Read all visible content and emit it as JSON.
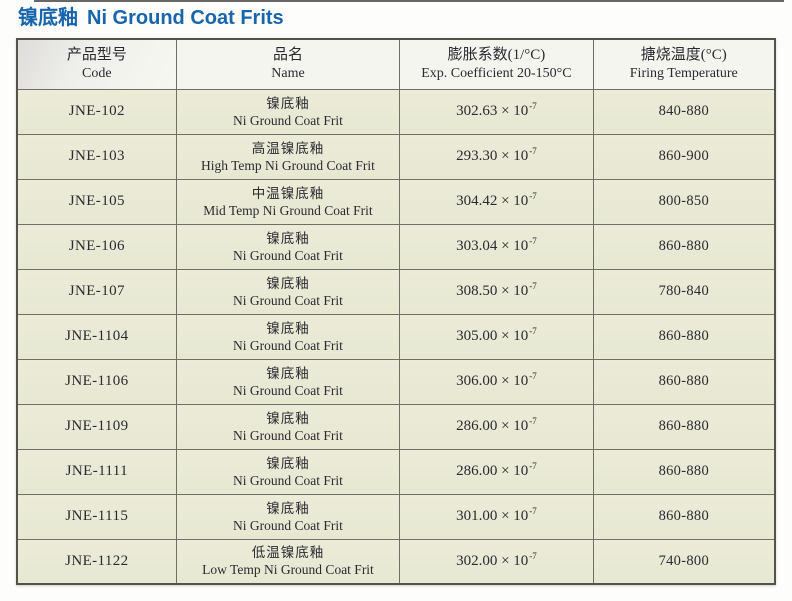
{
  "title": {
    "zh": "镍底釉",
    "en": "Ni Ground Coat Frits",
    "color": "#1765ad"
  },
  "table": {
    "columns": [
      {
        "zh": "产品型号",
        "en": "Code"
      },
      {
        "zh": "品名",
        "en": "Name"
      },
      {
        "zh": "膨胀系数(1/°C)",
        "en": "Exp. Coefficient 20-150°C"
      },
      {
        "zh": "搪烧温度(°C)",
        "en": "Firing Temperature"
      }
    ],
    "rows": [
      {
        "code": "JNE-102",
        "name_zh": "镍底釉",
        "name_en": "Ni Ground Coat Frit",
        "coeff": "302.63 × 10",
        "exp": "-7",
        "firing": "840-880"
      },
      {
        "code": "JNE-103",
        "name_zh": "高温镍底釉",
        "name_en": "High Temp Ni Ground Coat Frit",
        "coeff": "293.30 × 10",
        "exp": "-7",
        "firing": "860-900"
      },
      {
        "code": "JNE-105",
        "name_zh": "中温镍底釉",
        "name_en": "Mid Temp Ni Ground Coat Frit",
        "coeff": "304.42 × 10",
        "exp": "-7",
        "firing": "800-850"
      },
      {
        "code": "JNE-106",
        "name_zh": "镍底釉",
        "name_en": "Ni Ground Coat Frit",
        "coeff": "303.04 × 10",
        "exp": "-7",
        "firing": "860-880"
      },
      {
        "code": "JNE-107",
        "name_zh": "镍底釉",
        "name_en": "Ni Ground Coat Frit",
        "coeff": "308.50 × 10",
        "exp": "-7",
        "firing": "780-840"
      },
      {
        "code": "JNE-1104",
        "name_zh": "镍底釉",
        "name_en": "Ni Ground Coat Frit",
        "coeff": "305.00 × 10",
        "exp": "-7",
        "firing": "860-880"
      },
      {
        "code": "JNE-1106",
        "name_zh": "镍底釉",
        "name_en": "Ni Ground Coat Frit",
        "coeff": "306.00 × 10",
        "exp": "-7",
        "firing": "860-880"
      },
      {
        "code": "JNE-1109",
        "name_zh": "镍底釉",
        "name_en": "Ni Ground Coat Frit",
        "coeff": "286.00 × 10",
        "exp": "-7",
        "firing": "860-880"
      },
      {
        "code": "JNE-1111",
        "name_zh": "镍底釉",
        "name_en": "Ni Ground Coat Frit",
        "coeff": "286.00 × 10",
        "exp": "-7",
        "firing": "860-880"
      },
      {
        "code": "JNE-1115",
        "name_zh": "镍底釉",
        "name_en": "Ni Ground Coat Frit",
        "coeff": "301.00 × 10",
        "exp": "-7",
        "firing": "860-880"
      },
      {
        "code": "JNE-1122",
        "name_zh": "低温镍底釉",
        "name_en": "Low Temp Ni Ground Coat Frit",
        "coeff": "302.00 × 10",
        "exp": "-7",
        "firing": "740-800"
      }
    ],
    "colors": {
      "row_background": "#e9e9d5",
      "header_background": "#f5f5f0",
      "border": "#5d5d53"
    }
  }
}
